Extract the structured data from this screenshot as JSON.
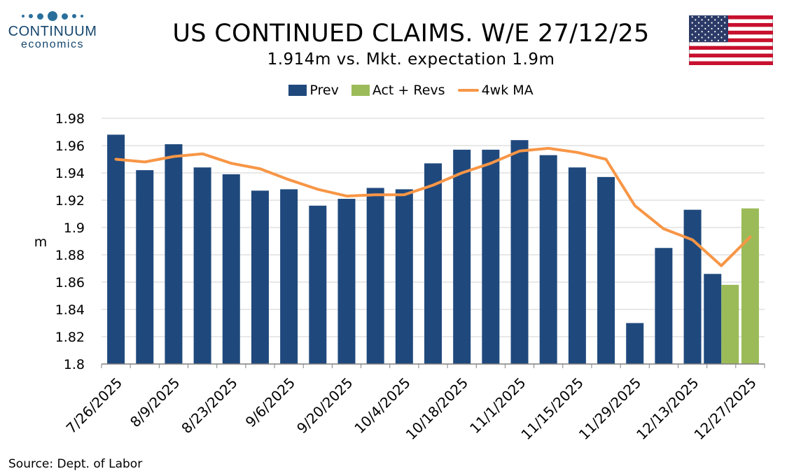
{
  "logo": {
    "line1": "CONTINUUM",
    "line2": "economics"
  },
  "header": {
    "title": "US CONTINUED CLAIMS. W/E 27/12/25",
    "subtitle": "1.914m vs. Mkt. expectation 1.9m"
  },
  "colors": {
    "prev": "#1f497d",
    "act": "#9bbb59",
    "ma": "#f79646",
    "grid": "#d0d0d0"
  },
  "source": "Source: Dept. of Labor",
  "chart_data": {
    "type": "bar",
    "title": "US CONTINUED CLAIMS. W/E 27/12/25",
    "ylabel": "m",
    "ylim": [
      1.8,
      1.98
    ],
    "yticks": [
      1.8,
      1.82,
      1.84,
      1.86,
      1.88,
      1.9,
      1.92,
      1.94,
      1.96,
      1.98
    ],
    "ytick_labels": [
      "1.8",
      "1.82",
      "1.84",
      "1.86",
      "1.88",
      "1.9",
      "1.92",
      "1.94",
      "1.96",
      "1.98"
    ],
    "categories": [
      "7/26/2025",
      "8/2/2025",
      "8/9/2025",
      "8/16/2025",
      "8/23/2025",
      "8/30/2025",
      "9/6/2025",
      "9/13/2025",
      "9/20/2025",
      "9/27/2025",
      "10/4/2025",
      "10/11/2025",
      "10/18/2025",
      "10/25/2025",
      "11/1/2025",
      "11/8/2025",
      "11/15/2025",
      "11/22/2025",
      "11/29/2025",
      "12/6/2025",
      "12/13/2025",
      "12/20/2025",
      "12/27/2025"
    ],
    "xtick_labels": [
      "7/26/2025",
      "8/9/2025",
      "8/23/2025",
      "9/6/2025",
      "9/20/2025",
      "10/4/2025",
      "10/18/2025",
      "11/1/2025",
      "11/15/2025",
      "11/29/2025",
      "12/13/2025",
      "12/27/2025"
    ],
    "series": [
      {
        "name": "Prev",
        "kind": "bar",
        "values": [
          1.968,
          1.942,
          1.961,
          1.944,
          1.939,
          1.927,
          1.928,
          1.916,
          1.921,
          1.929,
          1.928,
          1.947,
          1.957,
          1.957,
          1.964,
          1.953,
          1.944,
          1.937,
          1.83,
          1.885,
          1.913,
          1.866,
          null
        ]
      },
      {
        "name": "Act + Revs",
        "kind": "bar",
        "values": [
          null,
          null,
          null,
          null,
          null,
          null,
          null,
          null,
          null,
          null,
          null,
          null,
          null,
          null,
          null,
          null,
          null,
          null,
          null,
          null,
          null,
          1.858,
          1.914
        ]
      },
      {
        "name": "4wk MA",
        "kind": "line",
        "values": [
          1.95,
          1.948,
          1.952,
          1.954,
          1.947,
          1.943,
          1.935,
          1.928,
          1.923,
          1.924,
          1.924,
          1.931,
          1.94,
          1.947,
          1.956,
          1.958,
          1.955,
          1.95,
          1.916,
          1.899,
          1.891,
          1.872,
          1.893
        ]
      }
    ],
    "legend": "top-center"
  }
}
